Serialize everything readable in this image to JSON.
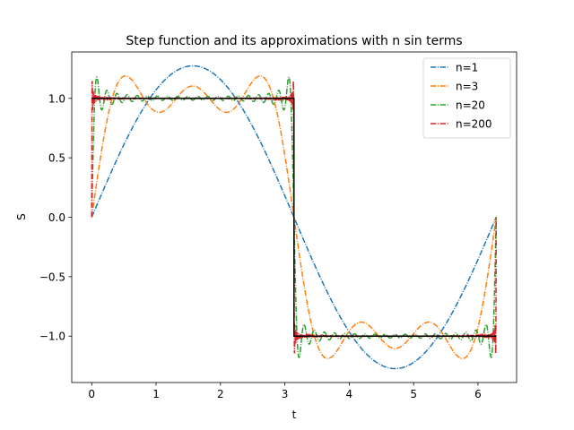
{
  "chart_data": {
    "type": "line",
    "title": "Step function and its approximations with n sin terms",
    "xlabel": "t",
    "ylabel": "S",
    "xlim": [
      -0.31,
      6.6
    ],
    "ylim": [
      -1.39,
      1.39
    ],
    "xticks": [
      0,
      1,
      2,
      3,
      4,
      5,
      6
    ],
    "xtick_labels": [
      "0",
      "1",
      "2",
      "3",
      "4",
      "5",
      "6"
    ],
    "yticks": [
      -1.0,
      -0.5,
      0.0,
      0.5,
      1.0
    ],
    "ytick_labels": [
      "−1.0",
      "−0.5",
      "0.0",
      "0.5",
      "1.0"
    ],
    "t_range": [
      0,
      6.2832
    ],
    "grid": false,
    "legend_position": "upper right",
    "series": [
      {
        "name": "n=1",
        "n_terms": 1,
        "color": "#1f77b4",
        "style": "dashdot"
      },
      {
        "name": "n=3",
        "n_terms": 3,
        "color": "#ff7f0e",
        "style": "dashdot"
      },
      {
        "name": "n=20",
        "n_terms": 20,
        "color": "#2ca02c",
        "style": "dashdot"
      },
      {
        "name": "n=200",
        "n_terms": 200,
        "color": "#d62728",
        "style": "dashdot"
      }
    ],
    "step_function": {
      "color": "#000000",
      "values": [
        {
          "t_from": 0,
          "t_to": 3.1416,
          "y": 1
        },
        {
          "t_from": 3.1416,
          "t_to": 6.2832,
          "y": -1
        }
      ]
    }
  }
}
